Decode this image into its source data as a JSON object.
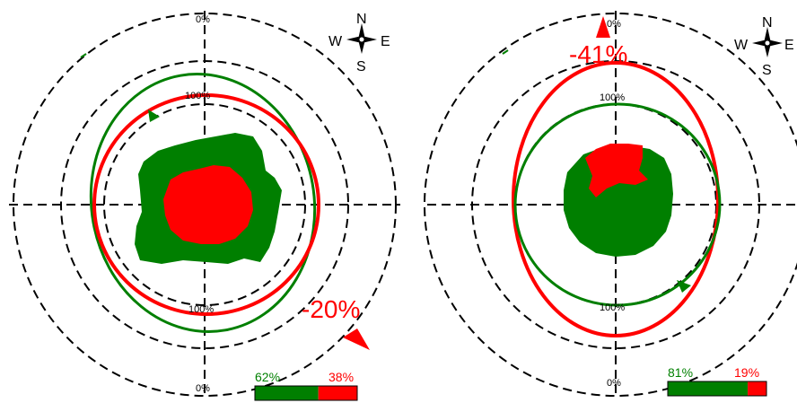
{
  "compass": {
    "n": "N",
    "s": "S",
    "e": "E",
    "w": "W"
  },
  "colors": {
    "green": "#007f00",
    "red": "#ff0000",
    "ring": "#000000"
  },
  "panels": [
    {
      "id": "left",
      "tick_top": "0%",
      "tick_mid_top": "100%",
      "tick_mid_bottom": "100%",
      "tick_bottom": "0%",
      "change_label": "-20%",
      "bar": {
        "green_label": "62%",
        "red_label": "38%",
        "green_fraction": 0.62,
        "red_fraction": 0.38
      }
    },
    {
      "id": "right",
      "tick_top": "0%",
      "tick_mid_top": "100%",
      "tick_mid_bottom": "100%",
      "tick_bottom": "0%",
      "change_label": "-41%",
      "bar": {
        "green_label": "81%",
        "red_label": "19%",
        "green_fraction": 0.81,
        "red_fraction": 0.19
      }
    }
  ]
}
